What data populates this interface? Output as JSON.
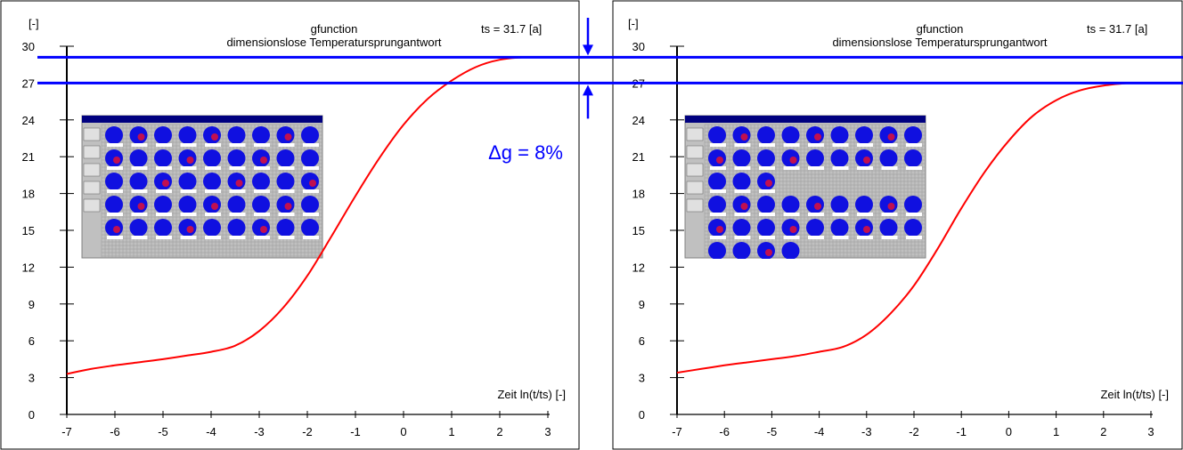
{
  "chart_data": [
    {
      "type": "line",
      "title": "gfunction",
      "subtitle": "dimensionslose Temperatursprungantwort",
      "annotation": "ts = 31.7 [a]",
      "xlabel": "Zeit ln(t/ts)  [-]",
      "ylabel": "[-]",
      "xlim": [
        -7,
        3
      ],
      "ylim": [
        0,
        30
      ],
      "xticks": [
        "-7",
        "-6",
        "-5",
        "-4",
        "-3",
        "-2",
        "-1",
        "0",
        "1",
        "2",
        "3"
      ],
      "yticks": [
        "0",
        "3",
        "6",
        "9",
        "12",
        "15",
        "18",
        "21",
        "24",
        "27",
        "30"
      ],
      "series": [
        {
          "color": "#ff0000",
          "x": [
            -7,
            -6.5,
            -6,
            -5.5,
            -5,
            -4.5,
            -4,
            -3.5,
            -3,
            -2.5,
            -2,
            -1.5,
            -1,
            -0.5,
            0,
            0.5,
            1,
            1.5,
            2,
            2.5,
            3
          ],
          "y": [
            3.3,
            3.7,
            4.0,
            4.25,
            4.5,
            4.8,
            5.1,
            5.6,
            6.8,
            8.7,
            11.3,
            14.5,
            17.8,
            20.9,
            23.6,
            25.7,
            27.2,
            28.3,
            28.9,
            29.1,
            29.1
          ]
        }
      ]
    },
    {
      "type": "line",
      "title": "gfunction",
      "subtitle": "dimensionslose Temperatursprungantwort",
      "annotation": "ts = 31.7 [a]",
      "xlabel": "Zeit ln(t/ts)  [-]",
      "ylabel": "[-]",
      "xlim": [
        -7,
        3
      ],
      "ylim": [
        0,
        30
      ],
      "xticks": [
        "-7",
        "-6",
        "-5",
        "-4",
        "-3",
        "-2",
        "-1",
        "0",
        "1",
        "2",
        "3"
      ],
      "yticks": [
        "0",
        "3",
        "6",
        "9",
        "12",
        "15",
        "18",
        "21",
        "24",
        "27",
        "30"
      ],
      "series": [
        {
          "color": "#ff0000",
          "x": [
            -7,
            -6.5,
            -6,
            -5.5,
            -5,
            -4.5,
            -4,
            -3.5,
            -3,
            -2.5,
            -2,
            -1.5,
            -1,
            -0.5,
            0,
            0.5,
            1,
            1.5,
            2,
            2.5,
            2.7
          ],
          "y": [
            3.4,
            3.7,
            4.0,
            4.25,
            4.5,
            4.75,
            5.1,
            5.5,
            6.5,
            8.2,
            10.5,
            13.5,
            16.8,
            19.8,
            22.3,
            24.3,
            25.6,
            26.4,
            26.8,
            27.0,
            27.0
          ]
        }
      ]
    }
  ],
  "reference_lines": {
    "y_values": [
      29.1,
      27.0
    ],
    "color": "#0000ff"
  },
  "delta_label": "Δg = 8%",
  "accent_color": "#0000ff"
}
